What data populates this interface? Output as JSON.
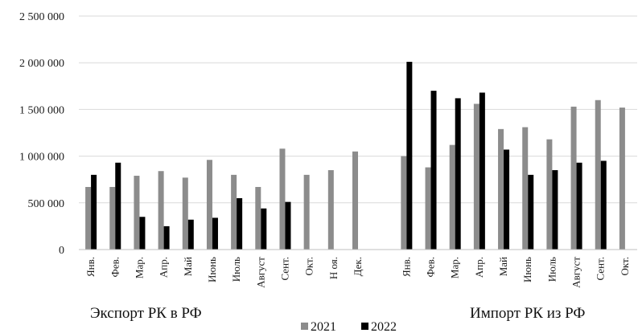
{
  "chart_data": {
    "type": "bar",
    "ylim": [
      0,
      2500000
    ],
    "y_ticks": [
      "0",
      "500 000",
      "1 000 000",
      "1 500 000",
      "2 000 000",
      "2 500 000"
    ],
    "y_tick_values": [
      0,
      500000,
      1000000,
      1500000,
      2000000,
      2500000
    ],
    "grid": "horizontal",
    "legend_position": "bottom-center",
    "legend": [
      "2021",
      "2022"
    ],
    "colors": {
      "2021": "#8c8c8c",
      "2022": "#000000",
      "grid": "#d9d9d9",
      "axis": "#bfbfbf"
    },
    "groups": [
      {
        "label": "Экспорт РК в РФ",
        "categories": [
          "Янв.",
          "Фев.",
          "Мар.",
          "Апр.",
          "Май",
          "Июнь",
          "Июль",
          "Август",
          "Сент.",
          "Окт.",
          "Н оя.",
          "Дек."
        ],
        "series": [
          {
            "name": "2021",
            "values": [
              670000,
              670000,
              790000,
              840000,
              770000,
              960000,
              800000,
              670000,
              1080000,
              800000,
              850000,
              1050000
            ]
          },
          {
            "name": "2022",
            "values": [
              800000,
              930000,
              350000,
              250000,
              320000,
              340000,
              550000,
              440000,
              510000,
              null,
              null,
              null
            ]
          }
        ]
      },
      {
        "label": "Импорт РК из РФ",
        "categories": [
          "Янв.",
          "Фев.",
          "Мар.",
          "Апр.",
          "Май",
          "Июнь",
          "Июль",
          "Август",
          "Сент.",
          "Окт."
        ],
        "series": [
          {
            "name": "2021",
            "values": [
              1000000,
              880000,
              1120000,
              1560000,
              1290000,
              1310000,
              1180000,
              1530000,
              1600000,
              1520000
            ]
          },
          {
            "name": "2022",
            "values": [
              2010000,
              1700000,
              1620000,
              1680000,
              1070000,
              800000,
              850000,
              930000,
              950000,
              null
            ]
          }
        ]
      }
    ]
  }
}
